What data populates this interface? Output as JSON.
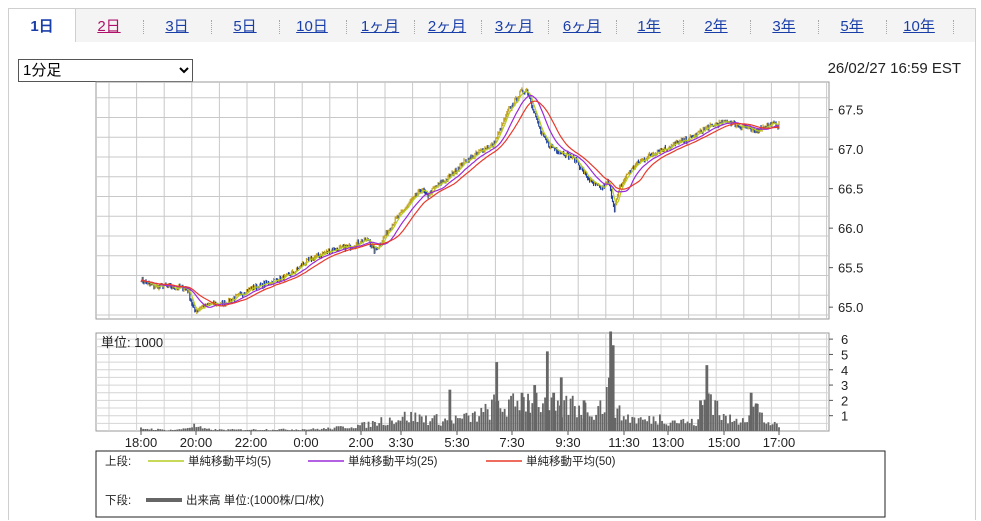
{
  "tabs": [
    {
      "label": "1日",
      "state": "active"
    },
    {
      "label": "2日",
      "state": "visited"
    },
    {
      "label": "3日",
      "state": "link"
    },
    {
      "label": "5日",
      "state": "link"
    },
    {
      "label": "10日",
      "state": "link"
    },
    {
      "label": "1ヶ月",
      "state": "link"
    },
    {
      "label": "2ヶ月",
      "state": "link"
    },
    {
      "label": "3ヶ月",
      "state": "link"
    },
    {
      "label": "6ヶ月",
      "state": "link"
    },
    {
      "label": "1年",
      "state": "link"
    },
    {
      "label": "2年",
      "state": "link"
    },
    {
      "label": "3年",
      "state": "link"
    },
    {
      "label": "5年",
      "state": "link"
    },
    {
      "label": "10年",
      "state": "link"
    }
  ],
  "interval_select": {
    "value": "1分足"
  },
  "timestamp": "26/02/27 16:59 EST",
  "colors": {
    "tab_link": "#1a3ea8",
    "tab_visited": "#b0106a",
    "ma5": "#b5cc22",
    "ma25": "#9a2bd8",
    "ma50": "#e83a2c",
    "volume": "#666666",
    "candle_up": "#c0a020",
    "candle_down": "#2040a0"
  },
  "chart_data": [
    {
      "type": "line",
      "title": "",
      "x_ticks": [
        "18:00",
        "20:00",
        "22:00",
        "0:00",
        "2:00",
        "3:30",
        "5:30",
        "7:30",
        "9:30",
        "11:30",
        "13:00",
        "15:00",
        "17:00"
      ],
      "ylim": [
        64.85,
        67.85
      ],
      "y_ticks": [
        65.0,
        65.5,
        66.0,
        66.5,
        67.0,
        67.5
      ],
      "grid": true,
      "price_path": [
        [
          0,
          65.35
        ],
        [
          0.5,
          65.26
        ],
        [
          1,
          65.27
        ],
        [
          1.3,
          65.24
        ],
        [
          1.6,
          65.25
        ],
        [
          1.85,
          65.22
        ],
        [
          2.1,
          64.95
        ],
        [
          2.4,
          65.0
        ],
        [
          2.8,
          65.04
        ],
        [
          3.2,
          65.04
        ],
        [
          3.6,
          65.1
        ],
        [
          4.0,
          65.17
        ],
        [
          4.4,
          65.25
        ],
        [
          4.8,
          65.28
        ],
        [
          5.2,
          65.33
        ],
        [
          5.6,
          65.37
        ],
        [
          6.0,
          65.43
        ],
        [
          6.4,
          65.55
        ],
        [
          6.8,
          65.62
        ],
        [
          7.2,
          65.68
        ],
        [
          7.6,
          65.73
        ],
        [
          8.0,
          65.75
        ],
        [
          8.4,
          65.78
        ],
        [
          8.8,
          65.85
        ],
        [
          9.0,
          65.85
        ],
        [
          9.2,
          65.72
        ],
        [
          9.4,
          65.78
        ],
        [
          9.7,
          65.94
        ],
        [
          10.0,
          66.08
        ],
        [
          10.3,
          66.2
        ],
        [
          10.6,
          66.32
        ],
        [
          10.9,
          66.42
        ],
        [
          11.1,
          66.5
        ],
        [
          11.3,
          66.4
        ],
        [
          11.6,
          66.52
        ],
        [
          12.0,
          66.6
        ],
        [
          12.4,
          66.72
        ],
        [
          12.8,
          66.85
        ],
        [
          13.2,
          66.92
        ],
        [
          13.5,
          67.0
        ],
        [
          13.9,
          67.05
        ],
        [
          14.2,
          67.25
        ],
        [
          14.5,
          67.48
        ],
        [
          14.8,
          67.62
        ],
        [
          15.0,
          67.72
        ],
        [
          15.25,
          67.75
        ],
        [
          15.5,
          67.5
        ],
        [
          15.8,
          67.2
        ],
        [
          16.1,
          67.05
        ],
        [
          16.5,
          66.98
        ],
        [
          16.9,
          66.92
        ],
        [
          17.2,
          66.85
        ],
        [
          17.6,
          66.65
        ],
        [
          17.9,
          66.55
        ],
        [
          18.2,
          66.5
        ],
        [
          18.45,
          66.6
        ],
        [
          18.7,
          66.25
        ],
        [
          18.9,
          66.5
        ],
        [
          19.2,
          66.68
        ],
        [
          19.6,
          66.82
        ],
        [
          20.0,
          66.9
        ],
        [
          20.4,
          66.98
        ],
        [
          20.8,
          67.02
        ],
        [
          21.2,
          67.08
        ],
        [
          21.6,
          67.12
        ],
        [
          22.0,
          67.2
        ],
        [
          22.4,
          67.28
        ],
        [
          22.8,
          67.32
        ],
        [
          23.2,
          67.35
        ],
        [
          23.6,
          67.3
        ],
        [
          23.9,
          67.28
        ],
        [
          24.2,
          67.22
        ],
        [
          24.6,
          67.28
        ],
        [
          24.9,
          67.32
        ],
        [
          25.2,
          67.3
        ]
      ],
      "series": [
        {
          "name": "単純移動平均(5)",
          "color": "#b5cc22"
        },
        {
          "name": "単純移動平均(25)",
          "color": "#9a2bd8"
        },
        {
          "name": "単純移動平均(50)",
          "color": "#e83a2c"
        }
      ]
    },
    {
      "type": "bar",
      "label": "単位: 1000",
      "ylim": [
        0,
        6.4
      ],
      "y_ticks": [
        1,
        2,
        3,
        4,
        5,
        6
      ],
      "grid": true,
      "volume_path": [
        [
          0,
          0.2
        ],
        [
          1,
          0.08
        ],
        [
          1.5,
          0.1
        ],
        [
          2.1,
          0.4
        ],
        [
          2.5,
          0.15
        ],
        [
          3,
          0.1
        ],
        [
          4,
          0.1
        ],
        [
          5,
          0.12
        ],
        [
          6,
          0.12
        ],
        [
          7,
          0.15
        ],
        [
          7.5,
          0.2
        ],
        [
          8,
          0.3
        ],
        [
          8.5,
          0.4
        ],
        [
          9,
          0.5
        ],
        [
          9.5,
          0.8
        ],
        [
          10,
          0.9
        ],
        [
          10.5,
          1.1
        ],
        [
          11,
          1.0
        ],
        [
          11.5,
          0.9
        ],
        [
          12,
          0.8
        ],
        [
          12.5,
          0.9
        ],
        [
          13,
          1.0
        ],
        [
          13.6,
          1.4
        ],
        [
          14,
          2.0
        ],
        [
          14.5,
          1.8
        ],
        [
          15,
          2.2
        ],
        [
          15.5,
          2.5
        ],
        [
          16,
          2.0
        ],
        [
          16.5,
          1.5
        ],
        [
          17,
          2.1
        ],
        [
          17.5,
          1.6
        ],
        [
          18,
          1.7
        ],
        [
          18.3,
          2.2
        ],
        [
          18.6,
          3.3
        ],
        [
          18.8,
          1.4
        ],
        [
          19,
          1.2
        ],
        [
          19.5,
          0.9
        ],
        [
          20,
          0.8
        ],
        [
          20.5,
          1.0
        ],
        [
          21,
          0.8
        ],
        [
          21.5,
          0.7
        ],
        [
          22,
          0.6
        ],
        [
          22.4,
          3.2
        ],
        [
          22.8,
          1.8
        ],
        [
          23,
          1.0
        ],
        [
          23.5,
          0.7
        ],
        [
          24,
          1.4
        ],
        [
          24.3,
          1.9
        ],
        [
          24.6,
          0.8
        ],
        [
          25,
          0.5
        ],
        [
          25.2,
          0.3
        ]
      ],
      "spikes": [
        [
          18.55,
          6.5
        ],
        [
          18.65,
          5.6
        ],
        [
          14.05,
          4.5
        ],
        [
          16.05,
          5.2
        ],
        [
          16.6,
          3.5
        ],
        [
          15.05,
          2.5
        ],
        [
          15.3,
          2.0
        ],
        [
          15.55,
          3.0
        ],
        [
          16.3,
          2.5
        ],
        [
          17.5,
          2.0
        ],
        [
          22.35,
          4.3
        ],
        [
          22.1,
          2.0
        ],
        [
          24.1,
          2.5
        ],
        [
          12.2,
          2.7
        ],
        [
          24.3,
          1.8
        ]
      ]
    }
  ],
  "legend": {
    "upper_label": "上段:",
    "lower_label": "下段:",
    "volume_name": "出来高 単位:(1000株/口/枚)"
  }
}
